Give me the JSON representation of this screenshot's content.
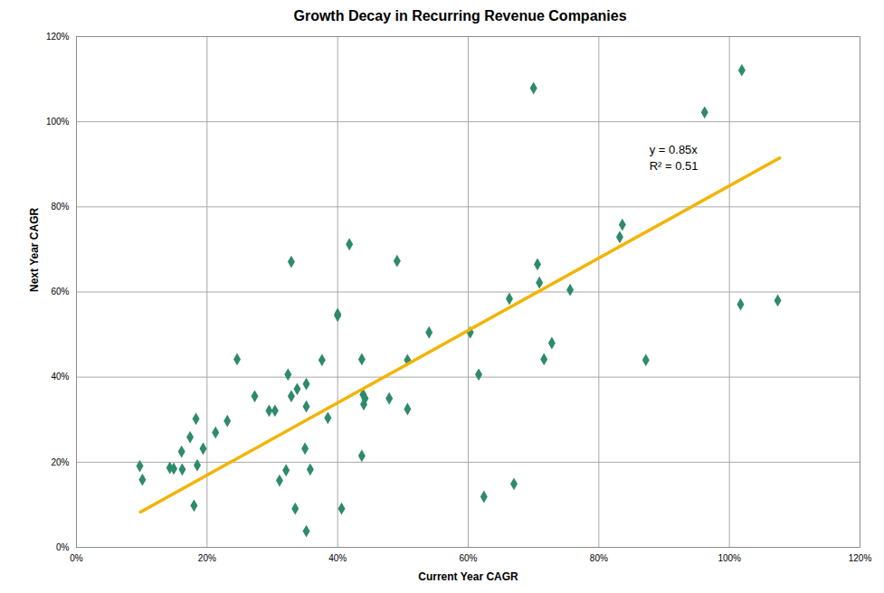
{
  "chart_data": {
    "type": "scatter",
    "title": "Growth Decay in Recurring Revenue Companies",
    "x_label": "Current Year CAGR",
    "y_label": "Next Year CAGR",
    "xlim": [
      0,
      120
    ],
    "ylim": [
      0,
      120
    ],
    "xticks": [
      {
        "value": 0,
        "label": "0%"
      },
      {
        "value": 20,
        "label": "20%"
      },
      {
        "value": 40,
        "label": "40%"
      },
      {
        "value": 60,
        "label": "60%"
      },
      {
        "value": 80,
        "label": "80%"
      },
      {
        "value": 100,
        "label": "100%"
      },
      {
        "value": 120,
        "label": "120%"
      }
    ],
    "yticks": [
      {
        "value": 0,
        "label": "0%"
      },
      {
        "value": 20,
        "label": "20%"
      },
      {
        "value": 40,
        "label": "40%"
      },
      {
        "value": 60,
        "label": "60%"
      },
      {
        "value": 80,
        "label": "80%"
      },
      {
        "value": 100,
        "label": "100%"
      },
      {
        "value": 120,
        "label": "120%"
      }
    ],
    "grid": true,
    "series": [
      {
        "type": "scatter",
        "color": "#2e8a6c",
        "marker": "diamond",
        "x": [
          9.7,
          10.1,
          14.3,
          14.9,
          16.2,
          16.1,
          17.4,
          18.3,
          18.5,
          18.0,
          19.4,
          21.3,
          23.1,
          24.6,
          27.3,
          29.5,
          30.4,
          31.1,
          32.1,
          32.4,
          32.9,
          32.9,
          33.8,
          33.5,
          35.2,
          35.2,
          35.0,
          35.2,
          35.8,
          37.6,
          38.5,
          40.0,
          40.0,
          40.6,
          41.8,
          43.7,
          43.9,
          44.2,
          44.0,
          43.7,
          47.9,
          49.1,
          50.7,
          50.7,
          54.0,
          60.3,
          61.6,
          62.4,
          66.3,
          67.0,
          70.6,
          70.0,
          70.9,
          71.6,
          72.8,
          75.6,
          83.2,
          83.6,
          87.2,
          96.2,
          101.9,
          101.7,
          107.4
        ],
        "values": [
          19.1,
          15.9,
          18.7,
          18.5,
          18.3,
          22.5,
          25.9,
          30.2,
          19.3,
          9.8,
          23.2,
          27.0,
          29.7,
          44.2,
          35.5,
          32.1,
          32.1,
          15.7,
          18.1,
          40.6,
          67.1,
          35.5,
          37.2,
          9.1,
          38.4,
          33.1,
          23.2,
          3.8,
          18.3,
          44.0,
          30.4,
          54.8,
          54.4,
          9.1,
          71.2,
          44.2,
          35.9,
          35.0,
          33.6,
          21.5,
          35.0,
          67.3,
          44.0,
          32.5,
          50.5,
          50.5,
          40.6,
          11.9,
          58.4,
          14.9,
          66.5,
          107.9,
          62.2,
          44.2,
          48.0,
          60.5,
          72.9,
          75.8,
          44.0,
          102.2,
          112.1,
          57.1,
          58.0
        ]
      },
      {
        "type": "line",
        "color": "#f2b400",
        "line_style": "solid",
        "x": [
          9.8,
          107.7
        ],
        "values": [
          8.3,
          91.5
        ]
      }
    ],
    "annotations": [
      "y = 0.85x",
      "R² = 0.51"
    ]
  }
}
